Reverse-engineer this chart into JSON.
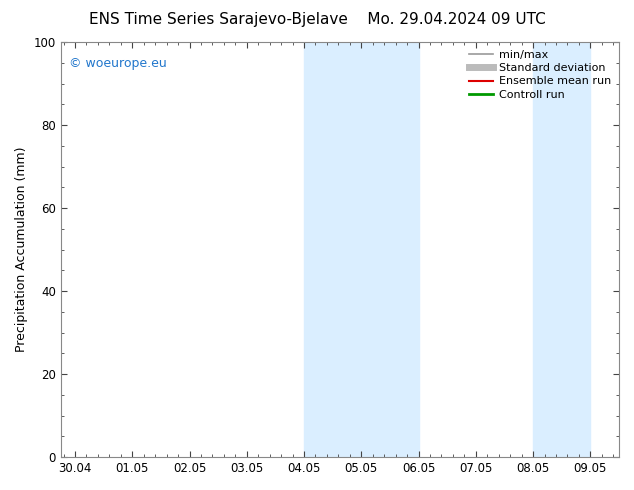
{
  "title_left": "ENS Time Series Sarajevo-Bjelave",
  "title_right": "Mo. 29.04.2024 09 UTC",
  "ylabel": "Precipitation Accumulation (mm)",
  "ylim": [
    0,
    100
  ],
  "yticks": [
    0,
    20,
    40,
    60,
    80,
    100
  ],
  "xtick_labels": [
    "30.04",
    "01.05",
    "02.05",
    "03.05",
    "04.05",
    "05.05",
    "06.05",
    "07.05",
    "08.05",
    "09.05"
  ],
  "xtick_positions": [
    0,
    1,
    2,
    3,
    4,
    5,
    6,
    7,
    8,
    9
  ],
  "xlim": [
    -0.25,
    9.5
  ],
  "shaded_bands": [
    {
      "xmin": 4.0,
      "xmax": 6.0
    },
    {
      "xmin": 8.0,
      "xmax": 9.0
    }
  ],
  "shade_color": "#daeeff",
  "watermark": "© woeurope.eu",
  "watermark_color": "#2277cc",
  "legend_entries": [
    {
      "label": "min/max",
      "color": "#999999",
      "lw": 1.2
    },
    {
      "label": "Standard deviation",
      "color": "#bbbbbb",
      "lw": 5.0
    },
    {
      "label": "Ensemble mean run",
      "color": "#dd0000",
      "lw": 1.5
    },
    {
      "label": "Controll run",
      "color": "#009900",
      "lw": 2.0
    }
  ],
  "bg_color": "#ffffff",
  "spine_color": "#888888",
  "tick_color": "#444444",
  "title_fontsize": 11,
  "axis_label_fontsize": 9,
  "tick_fontsize": 8.5,
  "watermark_fontsize": 9,
  "legend_fontsize": 8
}
